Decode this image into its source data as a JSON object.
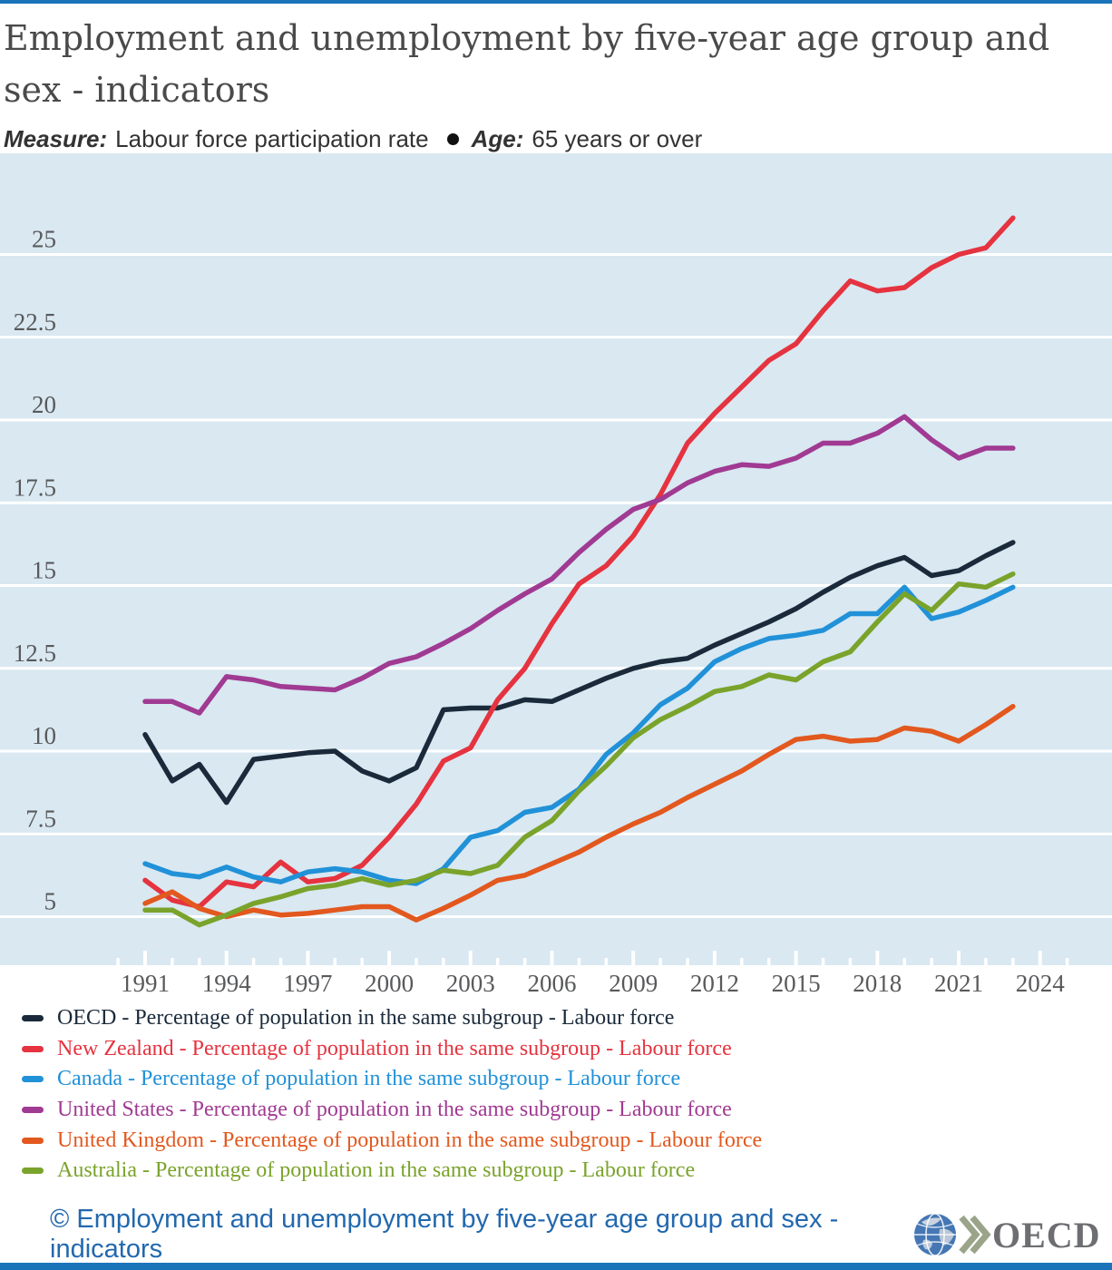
{
  "page": {
    "title": "Employment and unemployment by five-year age group and sex - indicators",
    "subtitle": {
      "measure_label": "Measure:",
      "measure_value": "Labour force participation rate",
      "age_label": "Age:",
      "age_value": "65 years or over"
    },
    "footer": {
      "copyright_text": "©  Employment and unemployment by five-year age group and sex - indicators",
      "logo_wordmark": "OECD"
    }
  },
  "colors": {
    "accent_bar": "#1b74ba",
    "plot_bg": "#d9e8f1",
    "grid": "#ffffff",
    "axis_text": "#58595b",
    "title_text": "#4a4a4a",
    "footer_text": "#2268ae",
    "logo_wordmark": "#6d6e71",
    "logo_chevrons": "#9aa489",
    "logo_globe": "#4577b5"
  },
  "chart_data": {
    "type": "line",
    "title": "Labour force participation rate, 65 years or over, 1991-2023",
    "xlabel": "",
    "ylabel": "Percentage of population in the same subgroup",
    "x": [
      1991,
      1992,
      1993,
      1994,
      1995,
      1996,
      1997,
      1998,
      1999,
      2000,
      2001,
      2002,
      2003,
      2004,
      2005,
      2006,
      2007,
      2008,
      2009,
      2010,
      2011,
      2012,
      2013,
      2014,
      2015,
      2016,
      2017,
      2018,
      2019,
      2020,
      2021,
      2022,
      2023
    ],
    "x_tick_labels": [
      "1991",
      "1994",
      "1997",
      "2000",
      "2003",
      "2006",
      "2009",
      "2012",
      "2015",
      "2018",
      "2021",
      "2024"
    ],
    "x_tick_years": [
      1991,
      1994,
      1997,
      2000,
      2003,
      2006,
      2009,
      2012,
      2015,
      2018,
      2021,
      2024
    ],
    "minor_tick_years_range": [
      1990,
      2025
    ],
    "y_ticks": [
      5,
      7.5,
      10,
      12.5,
      15,
      17.5,
      20,
      22.5,
      25
    ],
    "y_tick_labels": [
      "5",
      "7.5",
      "10",
      "12.5",
      "15",
      "17.5",
      "20",
      "22.5",
      "25"
    ],
    "ylim": [
      3.5,
      28
    ],
    "grid": "horizontal-white",
    "legend_position": "bottom-left",
    "series": [
      {
        "name": "OECD",
        "color": "#1a2a3a",
        "legend_label": "OECD - Percentage of population in the same subgroup - Labour force",
        "values": [
          10.5,
          9.1,
          9.6,
          8.45,
          9.75,
          9.85,
          9.95,
          10.0,
          9.4,
          9.1,
          9.5,
          11.25,
          11.3,
          11.3,
          11.55,
          11.5,
          11.85,
          12.2,
          12.5,
          12.7,
          12.8,
          13.2,
          13.55,
          13.9,
          14.3,
          14.8,
          15.25,
          15.6,
          15.85,
          15.3,
          15.45,
          15.9,
          16.3
        ]
      },
      {
        "name": "New Zealand",
        "color": "#e5333f",
        "legend_label": "New Zealand - Percentage of population in the same subgroup - Labour force",
        "values": [
          6.1,
          5.5,
          5.3,
          6.05,
          5.9,
          6.65,
          6.05,
          6.15,
          6.55,
          7.4,
          8.4,
          9.7,
          10.1,
          11.55,
          12.5,
          13.85,
          15.05,
          15.6,
          16.5,
          17.75,
          19.3,
          20.2,
          21.0,
          21.8,
          22.3,
          23.3,
          24.2,
          23.9,
          24.0,
          24.6,
          25.0,
          25.2,
          26.1
        ]
      },
      {
        "name": "Canada",
        "color": "#2191d8",
        "legend_label": "Canada - Percentage of population in the same subgroup - Labour force",
        "values": [
          6.6,
          6.3,
          6.2,
          6.5,
          6.2,
          6.05,
          6.35,
          6.45,
          6.35,
          6.1,
          6.0,
          6.45,
          7.4,
          7.6,
          8.15,
          8.3,
          8.85,
          9.9,
          10.55,
          11.4,
          11.9,
          12.7,
          13.1,
          13.4,
          13.5,
          13.65,
          14.15,
          14.15,
          14.95,
          14.0,
          14.2,
          14.55,
          14.95
        ]
      },
      {
        "name": "United States",
        "color": "#a03a92",
        "legend_label": "United States - Percentage of population in the same subgroup - Labour force",
        "values": [
          11.5,
          11.5,
          11.15,
          12.25,
          12.15,
          11.95,
          11.9,
          11.85,
          12.2,
          12.65,
          12.85,
          13.25,
          13.7,
          14.25,
          14.75,
          15.2,
          16.0,
          16.7,
          17.3,
          17.6,
          18.1,
          18.45,
          18.65,
          18.6,
          18.85,
          19.3,
          19.3,
          19.6,
          20.1,
          19.4,
          18.85,
          19.15,
          19.15
        ]
      },
      {
        "name": "United Kingdom",
        "color": "#e2581e",
        "legend_label": "United Kingdom - Percentage of population in the same subgroup - Labour force",
        "values": [
          5.4,
          5.75,
          5.25,
          5.0,
          5.2,
          5.05,
          5.1,
          5.2,
          5.3,
          5.3,
          4.9,
          5.25,
          5.65,
          6.1,
          6.25,
          6.6,
          6.95,
          7.4,
          7.8,
          8.15,
          8.6,
          9.0,
          9.4,
          9.9,
          10.35,
          10.45,
          10.3,
          10.35,
          10.7,
          10.6,
          10.3,
          10.8,
          11.35
        ]
      },
      {
        "name": "Australia",
        "color": "#7aa32b",
        "legend_label": "Australia - Percentage of population in the same subgroup - Labour force",
        "values": [
          5.2,
          5.2,
          4.75,
          5.05,
          5.4,
          5.6,
          5.85,
          5.95,
          6.15,
          5.95,
          6.1,
          6.4,
          6.3,
          6.55,
          7.4,
          7.9,
          8.8,
          9.55,
          10.4,
          10.95,
          11.35,
          11.8,
          11.95,
          12.3,
          12.15,
          12.7,
          13.0,
          13.9,
          14.75,
          14.25,
          15.05,
          14.95,
          15.35
        ]
      }
    ]
  }
}
